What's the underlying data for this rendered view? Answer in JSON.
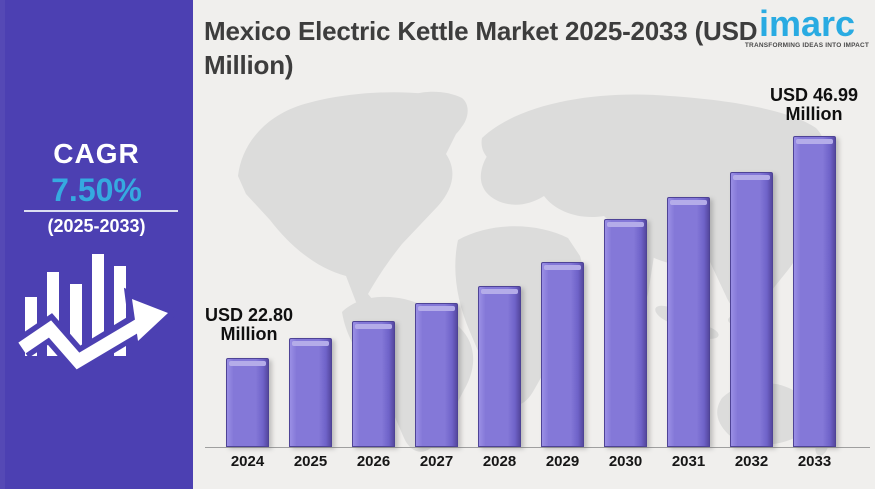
{
  "sidebar": {
    "cagr_label": "CAGR",
    "cagr_value": "7.50%",
    "cagr_period": "(2025-2033)",
    "bg_color": "#4c40b2",
    "value_color": "#35aae0",
    "icon": "growth-bars-arrow-icon"
  },
  "header": {
    "title": "Mexico Electric Kettle Market 2025-2033 (USD Million)"
  },
  "logo": {
    "brand": "imarc",
    "tagline": "TRANSFORMING IDEAS INTO IMPACT",
    "brand_color": "#29abe2"
  },
  "chart_data": {
    "type": "bar",
    "title": "Mexico Electric Kettle Market 2025-2033 (USD Million)",
    "unit": "USD Million",
    "categories": [
      "2024",
      "2025",
      "2026",
      "2027",
      "2028",
      "2029",
      "2030",
      "2031",
      "2032",
      "2033"
    ],
    "values": [
      22.8,
      24.98,
      26.83,
      28.79,
      30.64,
      33.26,
      37.94,
      40.34,
      43.06,
      46.99
    ],
    "annotations": [
      {
        "category": "2024",
        "text": "USD 22.80\nMillion"
      },
      {
        "category": "2033",
        "text": "USD 46.99\nMillion"
      }
    ],
    "bar_color": "#8478d8",
    "ylim": [
      13.1,
      46.99
    ],
    "grid": false,
    "legend": false,
    "background": "world-map-silhouette"
  }
}
